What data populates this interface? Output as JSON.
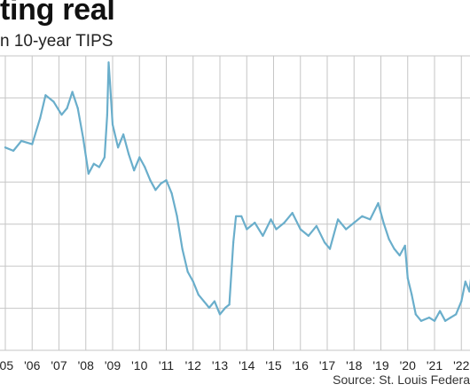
{
  "chart_data": {
    "type": "line",
    "title": "ting real",
    "subtitle": "n 10-year TIPS",
    "xlabel": "",
    "ylabel": "",
    "source": "Source: St. Louis Federa",
    "x_tick_labels": [
      "'05",
      "'06",
      "'07",
      "'08",
      "'09",
      "'10",
      "'11",
      "'12",
      "'13",
      "'14",
      "'15",
      "'16",
      "'17",
      "'18",
      "'19",
      "'20",
      "'21",
      "'22",
      "'2"
    ],
    "grid": true,
    "y_gridlines": 8,
    "color": "#6aaecb",
    "series": [
      {
        "x": [
          2005.0,
          2005.3,
          2005.6,
          2006.0,
          2006.3,
          2006.5,
          2006.8,
          2007.1,
          2007.3,
          2007.5,
          2007.7,
          2007.9,
          2008.1,
          2008.3,
          2008.5,
          2008.7,
          2008.8,
          2008.85,
          2008.9,
          2009.0,
          2009.2,
          2009.4,
          2009.6,
          2009.8,
          2010.0,
          2010.2,
          2010.4,
          2010.6,
          2010.8,
          2011.0,
          2011.2,
          2011.4,
          2011.6,
          2011.8,
          2012.0,
          2012.2,
          2012.4,
          2012.6,
          2012.8,
          2013.0,
          2013.2,
          2013.35,
          2013.5,
          2013.6,
          2013.8,
          2014.0,
          2014.3,
          2014.6,
          2014.9,
          2015.1,
          2015.4,
          2015.7,
          2016.0,
          2016.3,
          2016.6,
          2016.9,
          2017.1,
          2017.4,
          2017.7,
          2018.0,
          2018.3,
          2018.6,
          2018.9,
          2019.1,
          2019.3,
          2019.5,
          2019.7,
          2019.9,
          2020.0,
          2020.15,
          2020.3,
          2020.5,
          2020.8,
          2021.0,
          2021.2,
          2021.4,
          2021.6,
          2021.8,
          2022.0,
          2022.15,
          2022.3,
          2022.45,
          2022.6,
          2022.75,
          2022.85,
          2022.95,
          2023.1
        ],
        "values": [
          1.6,
          1.55,
          1.7,
          1.65,
          2.05,
          2.4,
          2.3,
          2.1,
          2.2,
          2.45,
          2.2,
          1.75,
          1.2,
          1.35,
          1.3,
          1.45,
          2.1,
          2.9,
          2.6,
          1.95,
          1.6,
          1.8,
          1.5,
          1.25,
          1.45,
          1.3,
          1.1,
          0.95,
          1.05,
          1.1,
          0.9,
          0.55,
          0.05,
          -0.3,
          -0.45,
          -0.65,
          -0.75,
          -0.85,
          -0.75,
          -0.95,
          -0.85,
          -0.8,
          0.15,
          0.55,
          0.55,
          0.35,
          0.45,
          0.25,
          0.5,
          0.35,
          0.45,
          0.6,
          0.35,
          0.25,
          0.4,
          0.15,
          0.05,
          0.5,
          0.35,
          0.45,
          0.55,
          0.5,
          0.75,
          0.45,
          0.2,
          0.05,
          -0.05,
          0.1,
          -0.4,
          -0.65,
          -0.95,
          -1.05,
          -1.0,
          -1.05,
          -0.9,
          -1.05,
          -1.0,
          -0.95,
          -0.75,
          -0.45,
          -0.6,
          -0.1,
          0.7,
          1.55,
          1.2,
          0.9,
          0.85
        ]
      }
    ]
  }
}
